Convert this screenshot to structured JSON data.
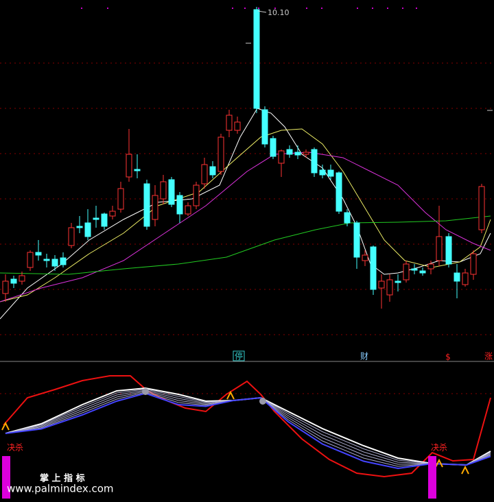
{
  "main_panel": {
    "high_label": "10.10",
    "markers": [
      "停",
      "财",
      "$",
      "涨"
    ]
  },
  "indicator_panel": {
    "signals": [
      "决杀",
      "决杀"
    ]
  },
  "watermark": {
    "brand": "掌 上 指 标",
    "url": "www.palmindex.com"
  }
}
